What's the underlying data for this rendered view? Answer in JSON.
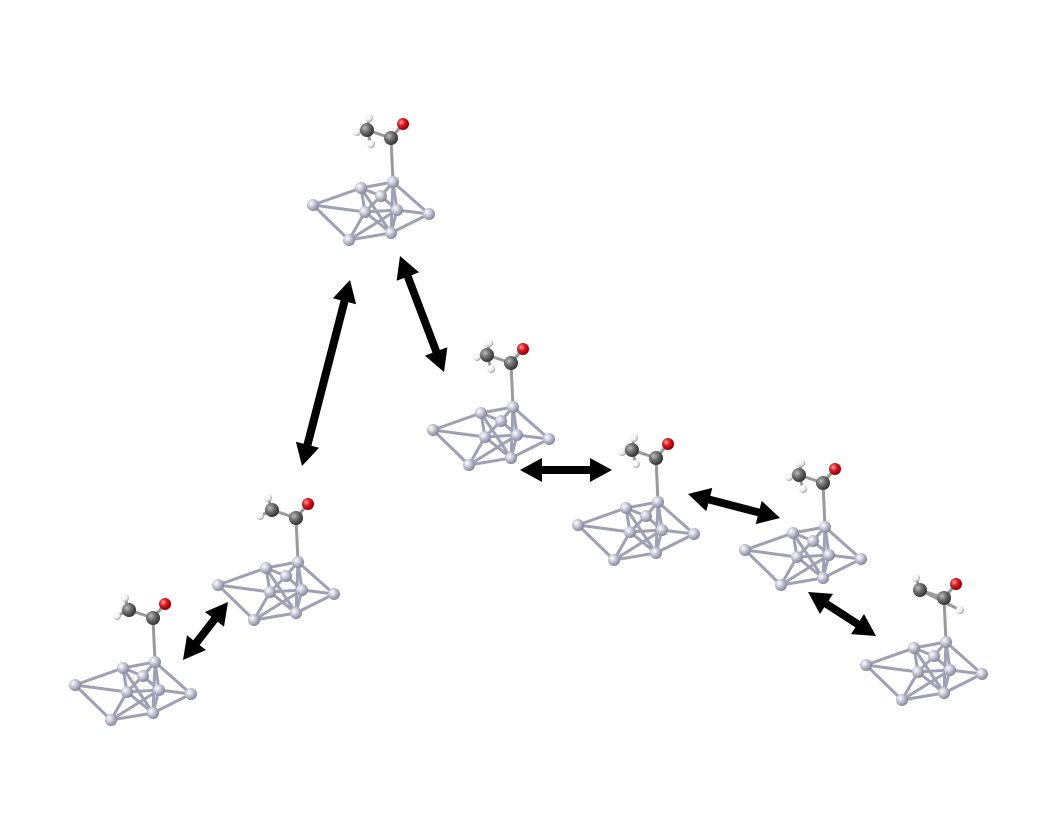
{
  "diagram": {
    "description_free": true,
    "structure_count": 7,
    "arrow_count": 6,
    "colors": {
      "background": "#ffffff",
      "metal_atom": "#b4b6c8",
      "metal_bond": "#9ea1b5",
      "carbon": "#707070",
      "oxygen": "#e0141e",
      "hydrogen": "#f2f2f2",
      "arrow": "#000000"
    },
    "structures": [
      {
        "id": "s1",
        "adsorbate": "h2-up"
      },
      {
        "id": "s2",
        "adsorbate": "h2-up"
      },
      {
        "id": "s3",
        "adsorbate": "h-down"
      },
      {
        "id": "s4",
        "adsorbate": "h-down"
      },
      {
        "id": "s5",
        "adsorbate": "h-down"
      },
      {
        "id": "s6",
        "adsorbate": "h-down"
      },
      {
        "id": "s7",
        "adsorbate": "h-right"
      }
    ],
    "arrows": [
      {
        "id": "a1",
        "from": "s1",
        "to": "s2"
      },
      {
        "id": "a2",
        "from": "s2",
        "to": "s3"
      },
      {
        "id": "a3",
        "from": "s3",
        "to": "s4"
      },
      {
        "id": "a4",
        "from": "s4",
        "to": "s5"
      },
      {
        "id": "a5",
        "from": "s5",
        "to": "s6"
      },
      {
        "id": "a6",
        "from": "s6",
        "to": "s7"
      }
    ]
  }
}
